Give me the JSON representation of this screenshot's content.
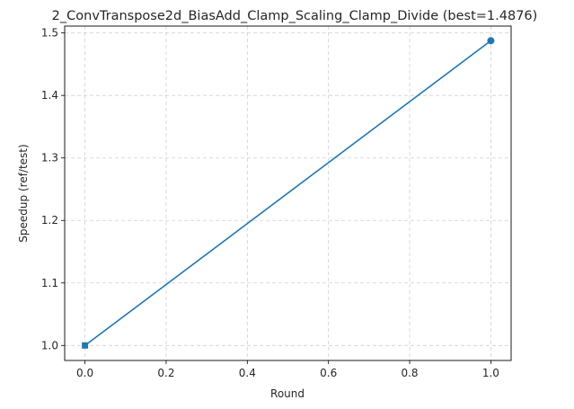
{
  "chart_data": {
    "type": "line",
    "title": "2_ConvTranspose2d_BiasAdd_Clamp_Scaling_Clamp_Divide (best=1.4876)",
    "xlabel": "Round",
    "ylabel": "Speedup (ref/test)",
    "x": [
      0.0,
      1.0
    ],
    "series": [
      {
        "values": [
          1.0,
          1.4876
        ],
        "color": "#1f77b4",
        "markers": [
          "square",
          "circle"
        ]
      }
    ],
    "xlim": [
      -0.05,
      1.05
    ],
    "ylim": [
      0.976,
      1.511
    ],
    "xticks": [
      0.0,
      0.2,
      0.4,
      0.6,
      0.8,
      1.0
    ],
    "xtick_labels": [
      "0.0",
      "0.2",
      "0.4",
      "0.6",
      "0.8",
      "1.0"
    ],
    "yticks": [
      1.0,
      1.1,
      1.2,
      1.3,
      1.4,
      1.5
    ],
    "ytick_labels": [
      "1.0",
      "1.1",
      "1.2",
      "1.3",
      "1.4",
      "1.5"
    ],
    "grid": true
  }
}
